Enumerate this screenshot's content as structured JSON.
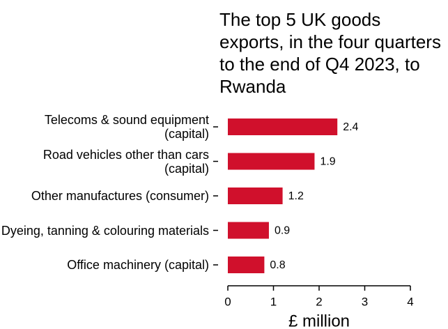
{
  "chart_data": {
    "type": "bar",
    "orientation": "horizontal",
    "title": "The top 5 UK goods exports, in the four quarters to the end of Q4 2023, to Rwanda",
    "categories": [
      "Telecoms & sound equipment (capital)",
      "Road vehicles other than cars (capital)",
      "Other manufactures (consumer)",
      "Dyeing, tanning & colouring materials",
      "Office machinery (capital)"
    ],
    "values": [
      2.4,
      1.9,
      1.2,
      0.9,
      0.8
    ],
    "color": "#d0102c",
    "xlim": [
      0,
      4
    ],
    "xticks": [
      0,
      1,
      2,
      3,
      4
    ],
    "xlabel": "£ million"
  }
}
